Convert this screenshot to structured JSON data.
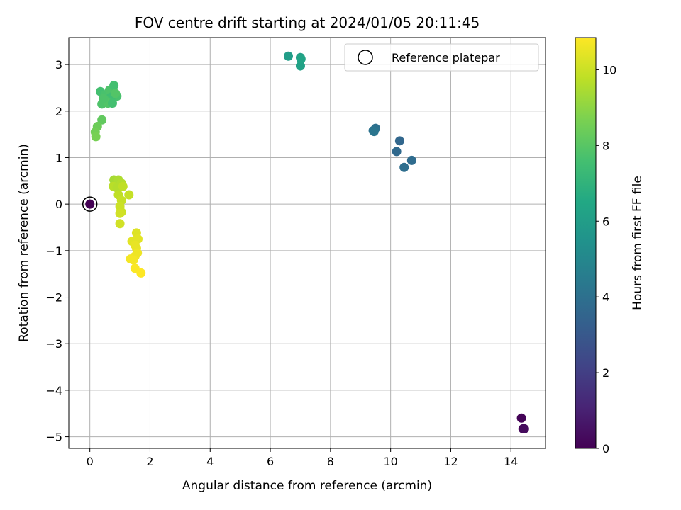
{
  "chart_data": {
    "type": "scatter",
    "title": "FOV centre drift starting at 2024/01/05 20:11:45",
    "xlabel": "Angular distance from reference (arcmin)",
    "ylabel": "Rotation from reference (arcmin)",
    "xlim": [
      -0.7,
      15.15
    ],
    "ylim": [
      -5.25,
      3.58
    ],
    "xticks": [
      0,
      2,
      4,
      6,
      8,
      10,
      12,
      14
    ],
    "yticks": [
      -5,
      -4,
      -3,
      -2,
      -1,
      0,
      1,
      2,
      3
    ],
    "grid": true,
    "legend": {
      "placement": "top-right",
      "entries": [
        "Reference platepar"
      ]
    },
    "colorbar": {
      "label": "Hours from first FF file",
      "range": [
        0,
        10.85
      ],
      "ticks": [
        0,
        2,
        4,
        6,
        8,
        10
      ],
      "colormap": "viridis"
    },
    "reference_point": {
      "x": 0,
      "y": 0
    },
    "points": [
      {
        "x": 0.0,
        "y": 0.0,
        "c": 0.0
      },
      {
        "x": 14.35,
        "y": -4.6,
        "c": 0.1
      },
      {
        "x": 14.4,
        "y": -4.83,
        "c": 0.2
      },
      {
        "x": 14.45,
        "y": -4.83,
        "c": 0.3
      },
      {
        "x": 10.3,
        "y": 1.36,
        "c": 3.6
      },
      {
        "x": 10.2,
        "y": 1.13,
        "c": 3.7
      },
      {
        "x": 10.7,
        "y": 0.94,
        "c": 3.8
      },
      {
        "x": 10.45,
        "y": 0.79,
        "c": 3.9
      },
      {
        "x": 9.5,
        "y": 1.63,
        "c": 4.0
      },
      {
        "x": 9.42,
        "y": 1.58,
        "c": 4.1
      },
      {
        "x": 9.45,
        "y": 1.56,
        "c": 4.2
      },
      {
        "x": 6.6,
        "y": 3.18,
        "c": 6.0
      },
      {
        "x": 7.0,
        "y": 3.15,
        "c": 6.1
      },
      {
        "x": 7.0,
        "y": 2.97,
        "c": 6.2
      },
      {
        "x": 7.02,
        "y": 3.12,
        "c": 6.3
      },
      {
        "x": 0.35,
        "y": 2.42,
        "c": 7.6
      },
      {
        "x": 0.5,
        "y": 2.35,
        "c": 7.7
      },
      {
        "x": 0.65,
        "y": 2.45,
        "c": 7.8
      },
      {
        "x": 0.8,
        "y": 2.55,
        "c": 7.6
      },
      {
        "x": 0.9,
        "y": 2.32,
        "c": 7.7
      },
      {
        "x": 0.7,
        "y": 2.3,
        "c": 7.5
      },
      {
        "x": 0.55,
        "y": 2.22,
        "c": 7.7
      },
      {
        "x": 0.4,
        "y": 2.15,
        "c": 7.8
      },
      {
        "x": 0.6,
        "y": 2.17,
        "c": 7.9
      },
      {
        "x": 0.75,
        "y": 2.17,
        "c": 7.6
      },
      {
        "x": 0.45,
        "y": 2.27,
        "c": 7.8
      },
      {
        "x": 0.85,
        "y": 2.38,
        "c": 7.9
      },
      {
        "x": 0.4,
        "y": 1.81,
        "c": 8.2
      },
      {
        "x": 0.25,
        "y": 1.67,
        "c": 8.4
      },
      {
        "x": 0.18,
        "y": 1.55,
        "c": 8.5
      },
      {
        "x": 0.2,
        "y": 1.45,
        "c": 8.6
      },
      {
        "x": 0.8,
        "y": 0.52,
        "c": 9.4
      },
      {
        "x": 0.95,
        "y": 0.52,
        "c": 9.5
      },
      {
        "x": 1.05,
        "y": 0.45,
        "c": 9.6
      },
      {
        "x": 0.78,
        "y": 0.38,
        "c": 9.7
      },
      {
        "x": 0.9,
        "y": 0.35,
        "c": 9.6
      },
      {
        "x": 1.1,
        "y": 0.38,
        "c": 9.8
      },
      {
        "x": 1.3,
        "y": 0.2,
        "c": 9.9
      },
      {
        "x": 0.95,
        "y": 0.2,
        "c": 9.8
      },
      {
        "x": 1.05,
        "y": 0.08,
        "c": 9.9
      },
      {
        "x": 1.0,
        "y": -0.05,
        "c": 10.0
      },
      {
        "x": 1.05,
        "y": -0.17,
        "c": 10.0
      },
      {
        "x": 1.0,
        "y": -0.2,
        "c": 10.1
      },
      {
        "x": 1.0,
        "y": -0.42,
        "c": 10.1
      },
      {
        "x": 1.55,
        "y": -0.62,
        "c": 10.3
      },
      {
        "x": 1.6,
        "y": -0.75,
        "c": 10.4
      },
      {
        "x": 1.4,
        "y": -0.8,
        "c": 10.4
      },
      {
        "x": 1.5,
        "y": -0.88,
        "c": 10.5
      },
      {
        "x": 1.55,
        "y": -0.95,
        "c": 10.5
      },
      {
        "x": 1.58,
        "y": -1.05,
        "c": 10.6
      },
      {
        "x": 1.5,
        "y": -1.12,
        "c": 10.6
      },
      {
        "x": 1.35,
        "y": -1.18,
        "c": 10.7
      },
      {
        "x": 1.45,
        "y": -1.2,
        "c": 10.7
      },
      {
        "x": 1.5,
        "y": -1.38,
        "c": 10.8
      },
      {
        "x": 1.7,
        "y": -1.48,
        "c": 10.85
      }
    ]
  }
}
